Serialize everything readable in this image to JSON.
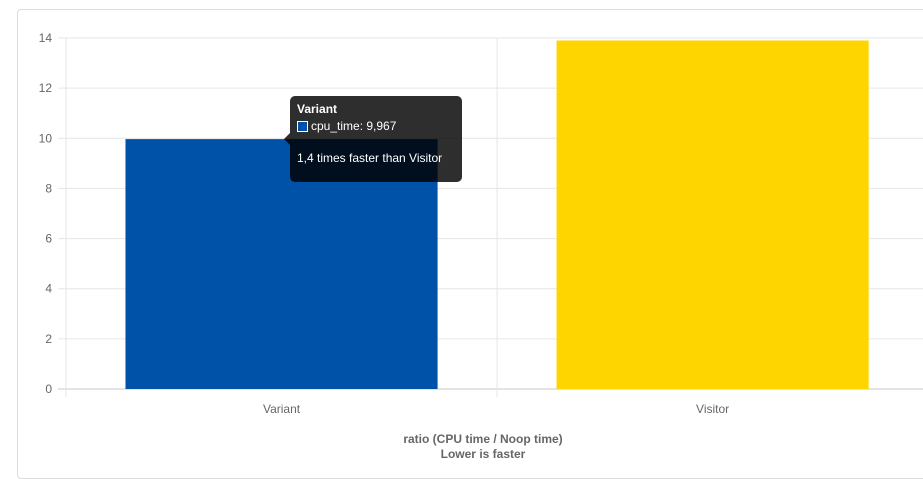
{
  "chart_data": {
    "type": "bar",
    "categories": [
      "Variant",
      "Visitor"
    ],
    "series": [
      {
        "name": "cpu_time",
        "values": [
          9.967,
          13.9
        ],
        "colors": [
          "#0051a8",
          "#ffd500"
        ]
      }
    ],
    "ylim": [
      0,
      14
    ],
    "yticks": [
      "0",
      "2",
      "4",
      "6",
      "8",
      "10",
      "12",
      "14"
    ],
    "xlabel_line1": "ratio (CPU time / Noop time)",
    "xlabel_line2": "Lower is faster",
    "grid": true
  },
  "tooltip": {
    "title": "Variant",
    "value_text": "cpu_time: 9,967",
    "footer": "1,4 times faster than Visitor",
    "swatch_color": "#0051a8"
  }
}
